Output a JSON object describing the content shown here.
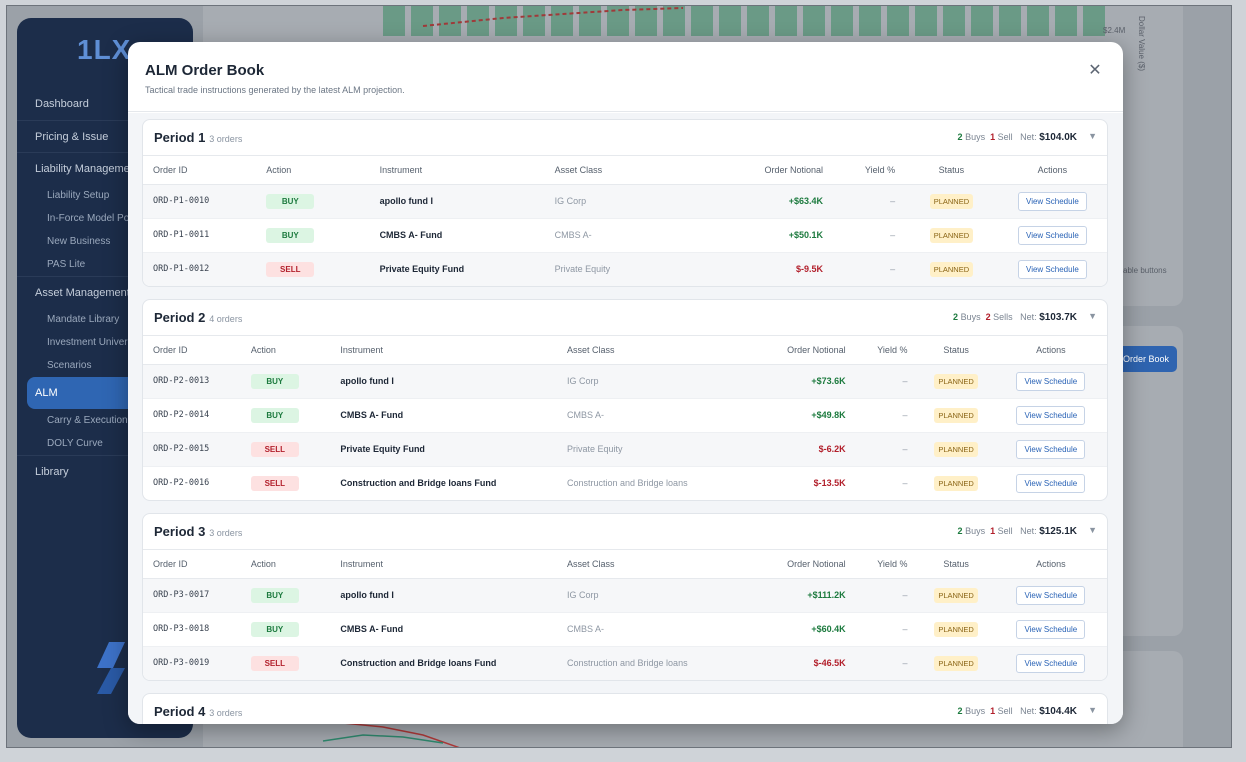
{
  "sidebar": {
    "brand": "1LX",
    "items": [
      {
        "label": "Dashboard",
        "kind": "top"
      },
      {
        "label": "Pricing & Issue",
        "kind": "sect"
      },
      {
        "label": "Liability Management",
        "kind": "sect"
      },
      {
        "label": "Liability Setup",
        "kind": "sub"
      },
      {
        "label": "In-Force Model Portfolio",
        "kind": "sub"
      },
      {
        "label": "New Business",
        "kind": "sub"
      },
      {
        "label": "PAS Lite",
        "kind": "sub"
      },
      {
        "label": "Asset Management",
        "kind": "sect"
      },
      {
        "label": "Mandate Library",
        "kind": "sub"
      },
      {
        "label": "Investment Universe",
        "kind": "sub"
      },
      {
        "label": "Scenarios",
        "kind": "sub"
      },
      {
        "label": "ALM",
        "kind": "active"
      },
      {
        "label": "Carry & Execution",
        "kind": "sub"
      },
      {
        "label": "DOLY Curve",
        "kind": "sub"
      },
      {
        "label": "Library",
        "kind": "sect"
      }
    ]
  },
  "background": {
    "order_book_button": "Order Book",
    "axis_note": "$2.4M",
    "axis_label": "Dollar Value ($)",
    "note": "able buttons"
  },
  "modal": {
    "title": "ALM Order Book",
    "subtitle": "Tactical trade instructions generated by the latest ALM projection.",
    "close_icon": "close-icon",
    "columns": {
      "order_id": "Order ID",
      "action": "Action",
      "instrument": "Instrument",
      "asset_class": "Asset Class",
      "notional": "Order Notional",
      "yield": "Yield %",
      "status": "Status",
      "actions": "Actions"
    },
    "view_label": "View Schedule",
    "periods": [
      {
        "title": "Period 1",
        "count": "3 orders",
        "buys": "2",
        "buys_label": "Buys",
        "sells": "1",
        "sells_label": "Sell",
        "net_label": "Net:",
        "net": "$104.0K",
        "rows": [
          {
            "id": "ORD-P1-0010",
            "action": "BUY",
            "instrument": "apollo fund I",
            "asset_class": "IG Corp",
            "notional": "+$63.4K",
            "yield": "–",
            "status": "PLANNED"
          },
          {
            "id": "ORD-P1-0011",
            "action": "BUY",
            "instrument": "CMBS A- Fund",
            "asset_class": "CMBS A-",
            "notional": "+$50.1K",
            "yield": "–",
            "status": "PLANNED"
          },
          {
            "id": "ORD-P1-0012",
            "action": "SELL",
            "instrument": "Private Equity Fund",
            "asset_class": "Private Equity",
            "notional": "$-9.5K",
            "yield": "–",
            "status": "PLANNED"
          }
        ]
      },
      {
        "title": "Period 2",
        "count": "4 orders",
        "buys": "2",
        "buys_label": "Buys",
        "sells": "2",
        "sells_label": "Sells",
        "net_label": "Net:",
        "net": "$103.7K",
        "rows": [
          {
            "id": "ORD-P2-0013",
            "action": "BUY",
            "instrument": "apollo fund I",
            "asset_class": "IG Corp",
            "notional": "+$73.6K",
            "yield": "–",
            "status": "PLANNED"
          },
          {
            "id": "ORD-P2-0014",
            "action": "BUY",
            "instrument": "CMBS A- Fund",
            "asset_class": "CMBS A-",
            "notional": "+$49.8K",
            "yield": "–",
            "status": "PLANNED"
          },
          {
            "id": "ORD-P2-0015",
            "action": "SELL",
            "instrument": "Private Equity Fund",
            "asset_class": "Private Equity",
            "notional": "$-6.2K",
            "yield": "–",
            "status": "PLANNED"
          },
          {
            "id": "ORD-P2-0016",
            "action": "SELL",
            "instrument": "Construction and Bridge loans Fund",
            "asset_class": "Construction and Bridge loans",
            "notional": "$-13.5K",
            "yield": "–",
            "status": "PLANNED"
          }
        ]
      },
      {
        "title": "Period 3",
        "count": "3 orders",
        "buys": "2",
        "buys_label": "Buys",
        "sells": "1",
        "sells_label": "Sell",
        "net_label": "Net:",
        "net": "$125.1K",
        "rows": [
          {
            "id": "ORD-P3-0017",
            "action": "BUY",
            "instrument": "apollo fund I",
            "asset_class": "IG Corp",
            "notional": "+$111.2K",
            "yield": "–",
            "status": "PLANNED"
          },
          {
            "id": "ORD-P3-0018",
            "action": "BUY",
            "instrument": "CMBS A- Fund",
            "asset_class": "CMBS A-",
            "notional": "+$60.4K",
            "yield": "–",
            "status": "PLANNED"
          },
          {
            "id": "ORD-P3-0019",
            "action": "SELL",
            "instrument": "Construction and Bridge loans Fund",
            "asset_class": "Construction and Bridge loans",
            "notional": "$-46.5K",
            "yield": "–",
            "status": "PLANNED"
          }
        ]
      },
      {
        "title": "Period 4",
        "count": "3 orders",
        "buys": "2",
        "buys_label": "Buys",
        "sells": "1",
        "sells_label": "Sell",
        "net_label": "Net:",
        "net": "$104.4K",
        "rows": []
      }
    ]
  },
  "colors": {
    "buy": "#1c7a3e",
    "sell": "#b21f2b",
    "accent": "#2a63b6",
    "sidebar": "#1c2d4a"
  }
}
